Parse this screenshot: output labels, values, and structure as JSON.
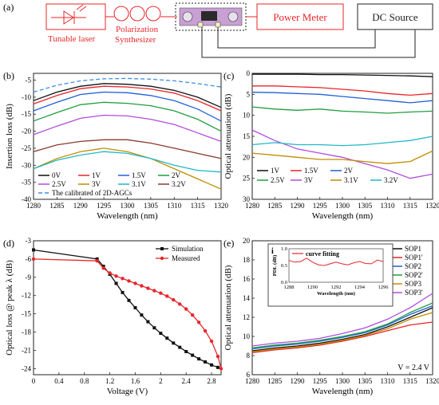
{
  "panel_labels": [
    "(a)",
    "(b)",
    "(c)",
    "(d)",
    "(e)"
  ],
  "setup": {
    "laser": "Tunable laser",
    "polarization_line1": "Polarization",
    "polarization_line2": "Synthesizer",
    "power_meter": "Power Meter",
    "dc_source": "DC Source",
    "red": "#e8262a",
    "black": "#222222"
  },
  "chart_data": [
    {
      "panel": "b",
      "type": "line",
      "xlabel": "Wavelength (nm)",
      "ylabel": "Insertion loss (dB)",
      "xlim": [
        1280,
        1320
      ],
      "ylim": [
        -40,
        -3
      ],
      "xticks": [
        1280,
        1285,
        1290,
        1295,
        1300,
        1305,
        1310,
        1315,
        1320
      ],
      "yticks": [
        -40,
        -35,
        -30,
        -25,
        -20,
        -15,
        -10,
        -5
      ],
      "x": [
        1280,
        1285,
        1290,
        1295,
        1300,
        1305,
        1310,
        1315,
        1320
      ],
      "legend_position": "bottom-left",
      "series": [
        {
          "name": "0V",
          "color": "#111111",
          "values": [
            -11,
            -8.5,
            -6.8,
            -6.0,
            -6.2,
            -6.8,
            -8.0,
            -10.0,
            -13.0
          ]
        },
        {
          "name": "1V",
          "color": "#e8262a",
          "values": [
            -12,
            -9.5,
            -7.5,
            -6.8,
            -7.0,
            -7.6,
            -8.8,
            -11.0,
            -14.0
          ]
        },
        {
          "name": "1.5V",
          "color": "#1f5fd6",
          "values": [
            -14,
            -11.5,
            -9.2,
            -8.5,
            -8.7,
            -9.5,
            -11.0,
            -13.5,
            -17.0
          ]
        },
        {
          "name": "2V",
          "color": "#1f9e3f",
          "values": [
            -17,
            -14.5,
            -12.2,
            -11.5,
            -11.8,
            -12.5,
            -14.0,
            -16.5,
            -20.0
          ]
        },
        {
          "name": "2.5V",
          "color": "#b04ce0",
          "values": [
            -21,
            -18.5,
            -16.2,
            -15.3,
            -15.5,
            -16.5,
            -18.0,
            -20.5,
            -23.0
          ]
        },
        {
          "name": "3V",
          "color": "#c08d00",
          "values": [
            -31,
            -28,
            -26,
            -25,
            -26,
            -28,
            -31,
            -34,
            -37
          ]
        },
        {
          "name": "3.1V",
          "color": "#20b8c8",
          "values": [
            -31,
            -28.5,
            -27,
            -26,
            -26.5,
            -28,
            -30,
            -31.5,
            -32
          ]
        },
        {
          "name": "3.2V",
          "color": "#8a3a2c",
          "values": [
            -26,
            -24,
            -23,
            -22.5,
            -22.5,
            -23.5,
            -25,
            -26.5,
            -28
          ]
        },
        {
          "name": "The calibrated of 2D-AGCs",
          "color": "#3d8fe0",
          "dashed": true,
          "values": [
            -8.5,
            -6.5,
            -5.2,
            -4.6,
            -4.5,
            -4.7,
            -5.2,
            -6.0,
            -7.0
          ]
        }
      ]
    },
    {
      "panel": "c",
      "type": "line",
      "xlabel": "Wavelength (nm)",
      "ylabel": "Optical attenuation (dB)",
      "xlim": [
        1280,
        1320
      ],
      "ylim": [
        30,
        0
      ],
      "xticks": [
        1280,
        1285,
        1290,
        1295,
        1300,
        1305,
        1310,
        1315,
        1320
      ],
      "yticks": [
        0,
        5,
        10,
        15,
        20,
        25,
        30
      ],
      "x": [
        1280,
        1285,
        1290,
        1295,
        1300,
        1305,
        1310,
        1315,
        1320
      ],
      "legend_position": "bottom-left",
      "series": [
        {
          "name": "1V",
          "color": "#111111",
          "values": [
            0.2,
            0.2,
            0.2,
            0.3,
            0.3,
            0.4,
            0.5,
            0.6,
            0.8
          ]
        },
        {
          "name": "1.5V",
          "color": "#e8262a",
          "values": [
            3.0,
            3.0,
            3.2,
            3.4,
            3.8,
            4.2,
            4.8,
            5.2,
            4.8
          ]
        },
        {
          "name": "2V",
          "color": "#1f5fd6",
          "values": [
            4.5,
            4.6,
            4.8,
            5.0,
            5.5,
            6.0,
            6.5,
            7.0,
            6.5
          ]
        },
        {
          "name": "2.5V",
          "color": "#1f9e3f",
          "values": [
            8.0,
            8.5,
            8.8,
            8.5,
            9.0,
            9.2,
            9.5,
            9.2,
            9.0
          ]
        },
        {
          "name": "3V",
          "color": "#b04ce0",
          "values": [
            13.5,
            16.0,
            18.0,
            19.0,
            20.0,
            21.5,
            23.0,
            25.0,
            24.0
          ]
        },
        {
          "name": "3.1V",
          "color": "#c08d00",
          "values": [
            19.0,
            19.5,
            20.0,
            20.5,
            20.5,
            21.0,
            21.5,
            21.0,
            18.5
          ]
        },
        {
          "name": "3.2V",
          "color": "#20b8c8",
          "values": [
            17.0,
            16.5,
            17.0,
            17.0,
            17.2,
            17.0,
            16.5,
            16.0,
            15.0
          ]
        }
      ]
    },
    {
      "panel": "d",
      "type": "line",
      "xlabel": "Voltage (V)",
      "ylabel": "Optical loss @ peak λ (dB)",
      "xlim": [
        0,
        2.95
      ],
      "ylim": [
        -25,
        -3
      ],
      "xticks": [
        0.0,
        0.4,
        0.8,
        1.2,
        1.6,
        2.0,
        2.4,
        2.8
      ],
      "yticks": [
        -24,
        -21,
        -18,
        -15,
        -12,
        -9,
        -6,
        -3
      ],
      "legend_position": "top-right",
      "series": [
        {
          "name": "Simulation",
          "color": "#111111",
          "marker": "square",
          "x": [
            0,
            1.0,
            1.1,
            1.2,
            1.3,
            1.4,
            1.5,
            1.6,
            1.7,
            1.8,
            1.9,
            2.0,
            2.1,
            2.2,
            2.3,
            2.4,
            2.5,
            2.6,
            2.7,
            2.8,
            2.9
          ],
          "values": [
            -4.5,
            -6.0,
            -7.2,
            -8.5,
            -10.0,
            -11.5,
            -12.8,
            -14.0,
            -15.2,
            -16.3,
            -17.3,
            -18.2,
            -19.0,
            -19.8,
            -20.5,
            -21.2,
            -21.8,
            -22.4,
            -22.9,
            -23.4,
            -23.8
          ]
        },
        {
          "name": "Measured",
          "color": "#e8262a",
          "marker": "circle",
          "x": [
            0,
            1.0,
            1.1,
            1.2,
            1.3,
            1.4,
            1.5,
            1.6,
            1.7,
            1.8,
            1.9,
            2.0,
            2.1,
            2.2,
            2.3,
            2.4,
            2.5,
            2.6,
            2.7,
            2.8,
            2.9,
            2.95
          ],
          "values": [
            -6.0,
            -6.3,
            -7.5,
            -8.3,
            -8.8,
            -9.2,
            -9.6,
            -10.0,
            -10.4,
            -10.8,
            -11.2,
            -11.6,
            -12.1,
            -12.7,
            -13.4,
            -14.2,
            -15.2,
            -16.4,
            -17.8,
            -19.5,
            -22.0,
            -24.0
          ]
        }
      ]
    },
    {
      "panel": "e",
      "type": "line",
      "xlabel": "Wavelength (nm)",
      "ylabel": "Optical attenuation (dB)",
      "xlim": [
        1280,
        1320
      ],
      "ylim": [
        6,
        20
      ],
      "xticks": [
        1280,
        1285,
        1290,
        1295,
        1300,
        1305,
        1310,
        1315,
        1320
      ],
      "yticks": [
        6,
        8,
        10,
        12,
        14,
        16,
        18,
        20
      ],
      "x": [
        1280,
        1285,
        1290,
        1295,
        1300,
        1305,
        1310,
        1315,
        1320
      ],
      "annotation": "V = 2.4 V",
      "legend_position": "top-right",
      "series": [
        {
          "name": "SOP1",
          "color": "#111111",
          "values": [
            8.5,
            8.8,
            9.0,
            9.3,
            9.7,
            10.2,
            11.0,
            12.0,
            13.0
          ]
        },
        {
          "name": "SOP1'",
          "color": "#e8262a",
          "values": [
            8.3,
            8.6,
            8.8,
            9.1,
            9.5,
            10.0,
            10.6,
            11.2,
            11.5
          ]
        },
        {
          "name": "SOP2",
          "color": "#1f5fd6",
          "values": [
            8.7,
            9.0,
            9.2,
            9.5,
            9.9,
            10.4,
            11.2,
            12.3,
            13.2
          ]
        },
        {
          "name": "SOP2'",
          "color": "#1f9e3f",
          "values": [
            8.8,
            9.1,
            9.3,
            9.6,
            10.0,
            10.5,
            11.3,
            12.5,
            13.5
          ]
        },
        {
          "name": "SOP3",
          "color": "#c08d00",
          "values": [
            8.4,
            8.7,
            8.9,
            9.2,
            9.6,
            10.1,
            10.8,
            11.8,
            12.5
          ]
        },
        {
          "name": "SOP3'",
          "color": "#b04ce0",
          "values": [
            9.0,
            9.3,
            9.5,
            9.8,
            10.3,
            10.9,
            11.8,
            13.0,
            14.5
          ]
        }
      ],
      "inset": {
        "panel_label": "i",
        "legend": "curve fitting",
        "xlabel": "Wavelength (nm)",
        "ylabel": "PDL (dB)",
        "xlim": [
          1288,
          1296
        ],
        "ylim": [
          0,
          1.0
        ],
        "xticks": [
          1288,
          1290,
          1292,
          1294,
          1296
        ],
        "yticks": [
          0.0,
          0.5,
          1.0
        ],
        "color": "#e8262a",
        "x": [
          1288,
          1288.5,
          1289,
          1289.5,
          1290,
          1290.5,
          1291,
          1291.5,
          1292,
          1292.5,
          1293,
          1293.5,
          1294,
          1294.5,
          1295,
          1295.5,
          1296
        ],
        "values": [
          0.65,
          0.6,
          0.62,
          0.72,
          0.6,
          0.52,
          0.5,
          0.55,
          0.6,
          0.55,
          0.52,
          0.58,
          0.62,
          0.56,
          0.55,
          0.66,
          0.62
        ]
      }
    }
  ]
}
